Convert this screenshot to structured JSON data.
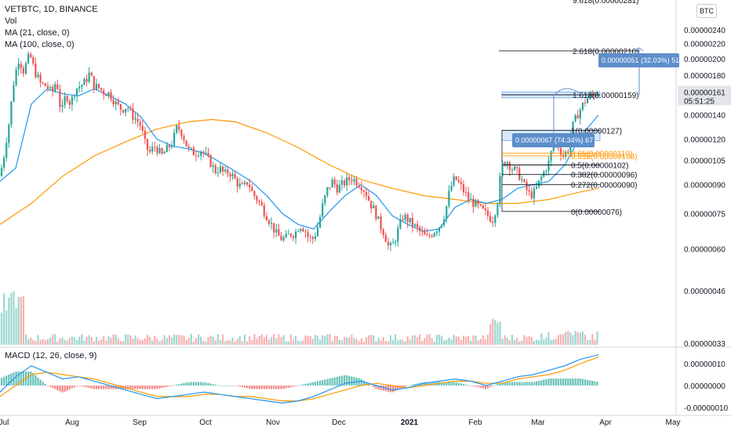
{
  "legend": {
    "symbol": "VETBTC, 1D, BINANCE",
    "vol": "Vol",
    "ma21": "MA (21, close, 0)",
    "ma100": "MA (100, close, 0)",
    "macd": "MACD (12, 26, close, 9)"
  },
  "currency_badge": "BTC",
  "top_cut_text": "9.618(0.00000281)",
  "colors": {
    "up": "#26a69a",
    "down": "#ef5350",
    "ma21": "#2196f3",
    "ma100": "#ff9800",
    "fib": "#131722",
    "fib_orange": "#ff9800",
    "measure_box": "#5d8ecb",
    "zone": "#90bff9"
  },
  "chart_data": {
    "type": "candlestick",
    "price_axis": {
      "ticks": [
        "0.00000240",
        "0.00000220",
        "0.00000200",
        "0.00000180",
        "0.00000161",
        "0.00000140",
        "0.00000120",
        "0.00000105",
        "0.00000090",
        "0.00000075",
        "0.00000060",
        "0.00000046",
        "0.00000033"
      ],
      "tick_values": [
        240,
        220,
        200,
        180,
        161,
        140,
        120,
        105,
        90,
        75,
        60,
        46,
        33
      ],
      "scale": "log",
      "unit_multiplier": 1e-08
    },
    "time_axis": {
      "labels": [
        "Jul",
        "Aug",
        "Sep",
        "Oct",
        "Nov",
        "Dec",
        "2021",
        "Feb",
        "Mar",
        "Apr",
        "May"
      ]
    },
    "last_price": {
      "value": "0.00000161",
      "countdown": "05:51:25"
    },
    "macd_axis": {
      "ticks": [
        "0.00000010",
        "0.00000000",
        "-0.00000010"
      ],
      "tick_values": [
        10,
        0,
        -10
      ]
    },
    "price_path": [
      [
        0,
        95
      ],
      [
        5,
        108
      ],
      [
        12,
        135
      ],
      [
        18,
        175
      ],
      [
        24,
        200
      ],
      [
        30,
        185
      ],
      [
        38,
        205
      ],
      [
        44,
        185
      ],
      [
        52,
        170
      ],
      [
        60,
        168
      ],
      [
        66,
        160
      ],
      [
        72,
        175
      ],
      [
        78,
        140
      ],
      [
        84,
        160
      ],
      [
        90,
        150
      ],
      [
        96,
        165
      ],
      [
        102,
        168
      ],
      [
        108,
        172
      ],
      [
        114,
        182
      ],
      [
        120,
        168
      ],
      [
        126,
        166
      ],
      [
        132,
        162
      ],
      [
        140,
        160
      ],
      [
        148,
        150
      ],
      [
        155,
        145
      ],
      [
        162,
        148
      ],
      [
        168,
        140
      ],
      [
        175,
        135
      ],
      [
        180,
        130
      ],
      [
        184,
        118
      ],
      [
        190,
        110
      ],
      [
        198,
        115
      ],
      [
        206,
        108
      ],
      [
        212,
        112
      ],
      [
        220,
        118
      ],
      [
        226,
        130
      ],
      [
        232,
        125
      ],
      [
        240,
        112
      ],
      [
        248,
        110
      ],
      [
        256,
        112
      ],
      [
        262,
        108
      ],
      [
        268,
        104
      ],
      [
        274,
        98
      ],
      [
        280,
        100
      ],
      [
        286,
        96
      ],
      [
        292,
        98
      ],
      [
        298,
        94
      ],
      [
        304,
        90
      ],
      [
        310,
        88
      ],
      [
        316,
        92
      ],
      [
        322,
        85
      ],
      [
        328,
        82
      ],
      [
        334,
        78
      ],
      [
        340,
        74
      ],
      [
        346,
        70
      ],
      [
        352,
        66
      ],
      [
        358,
        64
      ],
      [
        364,
        64
      ],
      [
        370,
        66
      ],
      [
        376,
        66
      ],
      [
        382,
        70
      ],
      [
        388,
        68
      ],
      [
        394,
        64
      ],
      [
        400,
        64
      ],
      [
        406,
        70
      ],
      [
        412,
        80
      ],
      [
        418,
        88
      ],
      [
        424,
        92
      ],
      [
        430,
        88
      ],
      [
        436,
        90
      ],
      [
        442,
        92
      ],
      [
        448,
        94
      ],
      [
        454,
        92
      ],
      [
        460,
        90
      ],
      [
        466,
        86
      ],
      [
        472,
        80
      ],
      [
        478,
        76
      ],
      [
        484,
        70
      ],
      [
        490,
        66
      ],
      [
        496,
        60
      ],
      [
        502,
        62
      ],
      [
        508,
        68
      ],
      [
        514,
        74
      ],
      [
        520,
        72
      ],
      [
        526,
        70
      ],
      [
        532,
        68
      ],
      [
        538,
        66
      ],
      [
        544,
        64
      ],
      [
        550,
        66
      ],
      [
        556,
        68
      ],
      [
        562,
        70
      ],
      [
        568,
        76
      ],
      [
        574,
        88
      ],
      [
        580,
        94
      ],
      [
        586,
        90
      ],
      [
        592,
        86
      ],
      [
        598,
        82
      ],
      [
        604,
        80
      ],
      [
        610,
        78
      ],
      [
        616,
        76
      ],
      [
        622,
        74
      ],
      [
        628,
        72
      ],
      [
        634,
        80
      ],
      [
        640,
        102
      ],
      [
        646,
        105
      ],
      [
        652,
        100
      ],
      [
        658,
        98
      ],
      [
        664,
        94
      ],
      [
        670,
        88
      ],
      [
        676,
        84
      ],
      [
        682,
        86
      ],
      [
        688,
        92
      ],
      [
        694,
        98
      ],
      [
        700,
        104
      ],
      [
        706,
        118
      ],
      [
        712,
        115
      ],
      [
        718,
        108
      ],
      [
        724,
        112
      ],
      [
        730,
        130
      ],
      [
        736,
        140
      ],
      [
        742,
        148
      ],
      [
        748,
        155
      ],
      [
        754,
        158
      ],
      [
        760,
        162
      ],
      [
        763,
        161
      ]
    ],
    "ma21_path": [
      [
        0,
        92
      ],
      [
        20,
        100
      ],
      [
        40,
        150
      ],
      [
        60,
        165
      ],
      [
        80,
        160
      ],
      [
        100,
        158
      ],
      [
        120,
        165
      ],
      [
        140,
        158
      ],
      [
        160,
        150
      ],
      [
        180,
        138
      ],
      [
        200,
        120
      ],
      [
        220,
        115
      ],
      [
        240,
        113
      ],
      [
        260,
        110
      ],
      [
        280,
        104
      ],
      [
        300,
        98
      ],
      [
        320,
        92
      ],
      [
        340,
        84
      ],
      [
        360,
        75
      ],
      [
        380,
        70
      ],
      [
        400,
        68
      ],
      [
        420,
        76
      ],
      [
        440,
        84
      ],
      [
        460,
        90
      ],
      [
        480,
        84
      ],
      [
        500,
        74
      ],
      [
        520,
        70
      ],
      [
        540,
        67
      ],
      [
        560,
        68
      ],
      [
        580,
        78
      ],
      [
        600,
        82
      ],
      [
        620,
        80
      ],
      [
        640,
        82
      ],
      [
        660,
        88
      ],
      [
        680,
        90
      ],
      [
        700,
        92
      ],
      [
        720,
        102
      ],
      [
        740,
        122
      ],
      [
        763,
        140
      ]
    ],
    "ma100_path": [
      [
        0,
        70
      ],
      [
        40,
        80
      ],
      [
        80,
        95
      ],
      [
        120,
        108
      ],
      [
        160,
        118
      ],
      [
        200,
        128
      ],
      [
        240,
        134
      ],
      [
        270,
        136
      ],
      [
        300,
        134
      ],
      [
        340,
        125
      ],
      [
        380,
        114
      ],
      [
        420,
        102
      ],
      [
        460,
        93
      ],
      [
        500,
        88
      ],
      [
        540,
        84
      ],
      [
        580,
        82
      ],
      [
        620,
        80
      ],
      [
        660,
        80
      ],
      [
        700,
        82
      ],
      [
        740,
        86
      ],
      [
        763,
        88
      ]
    ],
    "macd_line": [
      [
        0,
        -3
      ],
      [
        20,
        4
      ],
      [
        40,
        9
      ],
      [
        60,
        6
      ],
      [
        80,
        3
      ],
      [
        100,
        4
      ],
      [
        120,
        2
      ],
      [
        140,
        0
      ],
      [
        160,
        -2
      ],
      [
        180,
        -4
      ],
      [
        200,
        -6
      ],
      [
        220,
        -5
      ],
      [
        240,
        -4
      ],
      [
        260,
        -3
      ],
      [
        280,
        -4
      ],
      [
        300,
        -5
      ],
      [
        320,
        -6
      ],
      [
        340,
        -7
      ],
      [
        360,
        -8
      ],
      [
        380,
        -7
      ],
      [
        400,
        -5
      ],
      [
        420,
        -2
      ],
      [
        440,
        1
      ],
      [
        460,
        2
      ],
      [
        480,
        0
      ],
      [
        500,
        -2
      ],
      [
        520,
        -1
      ],
      [
        540,
        1
      ],
      [
        560,
        2
      ],
      [
        580,
        3
      ],
      [
        600,
        2
      ],
      [
        620,
        0
      ],
      [
        640,
        2
      ],
      [
        660,
        4
      ],
      [
        680,
        5
      ],
      [
        700,
        7
      ],
      [
        720,
        9
      ],
      [
        740,
        12
      ],
      [
        763,
        14
      ]
    ],
    "signal_line": [
      [
        0,
        -5
      ],
      [
        20,
        0
      ],
      [
        40,
        5
      ],
      [
        60,
        6
      ],
      [
        80,
        5
      ],
      [
        100,
        4
      ],
      [
        120,
        3
      ],
      [
        140,
        1
      ],
      [
        160,
        -1
      ],
      [
        180,
        -3
      ],
      [
        200,
        -5
      ],
      [
        220,
        -5
      ],
      [
        240,
        -5
      ],
      [
        260,
        -4
      ],
      [
        280,
        -4
      ],
      [
        300,
        -5
      ],
      [
        320,
        -5
      ],
      [
        340,
        -6
      ],
      [
        360,
        -7
      ],
      [
        380,
        -7
      ],
      [
        400,
        -6
      ],
      [
        420,
        -4
      ],
      [
        440,
        -2
      ],
      [
        460,
        0
      ],
      [
        480,
        1
      ],
      [
        500,
        0
      ],
      [
        520,
        -1
      ],
      [
        540,
        0
      ],
      [
        560,
        1
      ],
      [
        580,
        2
      ],
      [
        600,
        2
      ],
      [
        620,
        1
      ],
      [
        640,
        1
      ],
      [
        660,
        3
      ],
      [
        680,
        4
      ],
      [
        700,
        5
      ],
      [
        720,
        7
      ],
      [
        740,
        10
      ],
      [
        763,
        13
      ]
    ]
  },
  "fib": {
    "levels": [
      {
        "label": "2.618(0.00000210)",
        "value": 210
      },
      {
        "label": "1.618(0.00000159)",
        "value": 159
      },
      {
        "label": "1(0.00000127)",
        "value": 127
      },
      {
        "label": "0.65(0.00000110)",
        "value": 110,
        "orange": true
      },
      {
        "label": "0.618(0.00000108)",
        "value": 108,
        "orange": true
      },
      {
        "label": "0.5(0.00000102)",
        "value": 102
      },
      {
        "label": "0.382(0.00000096)",
        "value": 96
      },
      {
        "label": "0.272(0.00000090)",
        "value": 90
      },
      {
        "label": "0(0.00000076)",
        "value": 76
      }
    ]
  },
  "measure": {
    "upper": "0.00000051 (32.03%) 51",
    "lower": "0.00000067 (74.34%) 67"
  }
}
